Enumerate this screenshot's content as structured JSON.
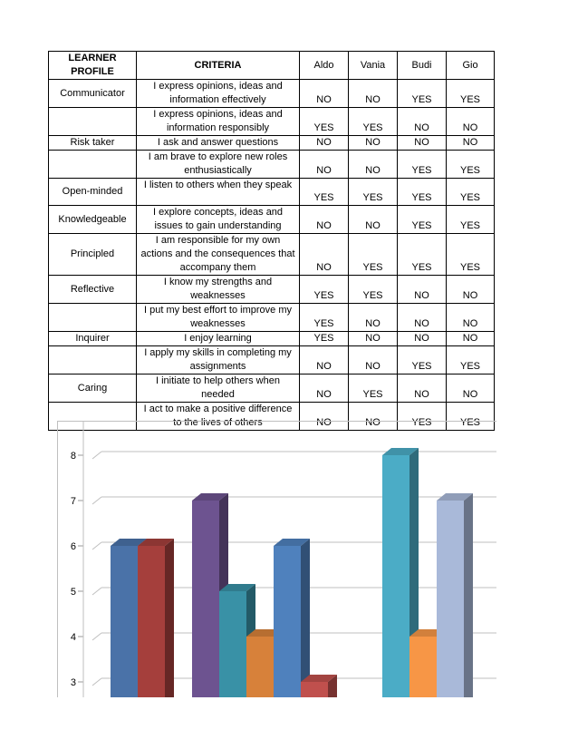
{
  "table": {
    "headers": [
      "LEARNER PROFILE",
      "CRITERIA",
      "Aldo",
      "Vania",
      "Budi",
      "Gio"
    ],
    "rows": [
      {
        "profile": "Communicator",
        "criteria": "I express opinions, ideas and information effectively",
        "values": [
          "NO",
          "NO",
          "YES",
          "YES"
        ]
      },
      {
        "profile": "",
        "criteria": "I express opinions, ideas and information responsibly",
        "values": [
          "YES",
          "YES",
          "NO",
          "NO"
        ]
      },
      {
        "profile": "Risk taker",
        "criteria": "I ask and answer questions",
        "values": [
          "NO",
          "NO",
          "NO",
          "NO"
        ]
      },
      {
        "profile": "",
        "criteria": "I am brave to explore new roles enthusiastically",
        "values": [
          "NO",
          "NO",
          "YES",
          "YES"
        ]
      },
      {
        "profile": "Open-minded",
        "criteria": "I listen to others when they speak",
        "values": [
          "YES",
          "YES",
          "YES",
          "YES"
        ]
      },
      {
        "profile": "Knowledgeable",
        "criteria": "I explore concepts, ideas and issues to gain understanding",
        "values": [
          "NO",
          "NO",
          "YES",
          "YES"
        ]
      },
      {
        "profile": "Principled",
        "criteria": "I am responsible for my own actions and the consequences that accompany them",
        "values": [
          "NO",
          "YES",
          "YES",
          "YES"
        ]
      },
      {
        "profile": "Reflective",
        "criteria": "I know my strengths and weaknesses",
        "values": [
          "YES",
          "YES",
          "NO",
          "NO"
        ]
      },
      {
        "profile": "",
        "criteria": "I put my best effort to improve my weaknesses",
        "values": [
          "YES",
          "NO",
          "NO",
          "NO"
        ]
      },
      {
        "profile": "Inquirer",
        "criteria": "I enjoy learning",
        "values": [
          "YES",
          "NO",
          "NO",
          "NO"
        ]
      },
      {
        "profile": "",
        "criteria": "I apply my skills in completing my assignments",
        "values": [
          "NO",
          "NO",
          "YES",
          "YES"
        ]
      },
      {
        "profile": "Caring",
        "criteria": "I initiate to help others when needed",
        "values": [
          "NO",
          "YES",
          "NO",
          "NO"
        ]
      },
      {
        "profile": "",
        "criteria": "I act to make a positive difference to the lives of others",
        "values": [
          "NO",
          "NO",
          "YES",
          "YES"
        ]
      }
    ]
  },
  "chart_data": {
    "type": "bar",
    "y_ticks": [
      "3",
      "4",
      "5",
      "6",
      "7",
      "8"
    ],
    "ylim": [
      2.7,
      8.4
    ],
    "grid": true,
    "legend": "none",
    "bars": [
      {
        "value": 6,
        "color": "#4a72a8"
      },
      {
        "value": 6,
        "color": "#a53f3c"
      },
      {
        "value": 7,
        "color": "#6d5390"
      },
      {
        "value": 5,
        "color": "#3991a6"
      },
      {
        "value": 4,
        "color": "#d7813a"
      },
      {
        "value": 6,
        "color": "#4f81bd"
      },
      {
        "value": 3,
        "color": "#c0504d"
      },
      {
        "value": 8,
        "color": "#4bacc6"
      },
      {
        "value": 4,
        "color": "#f79646"
      },
      {
        "value": 7,
        "color": "#a9b9d9"
      }
    ]
  }
}
